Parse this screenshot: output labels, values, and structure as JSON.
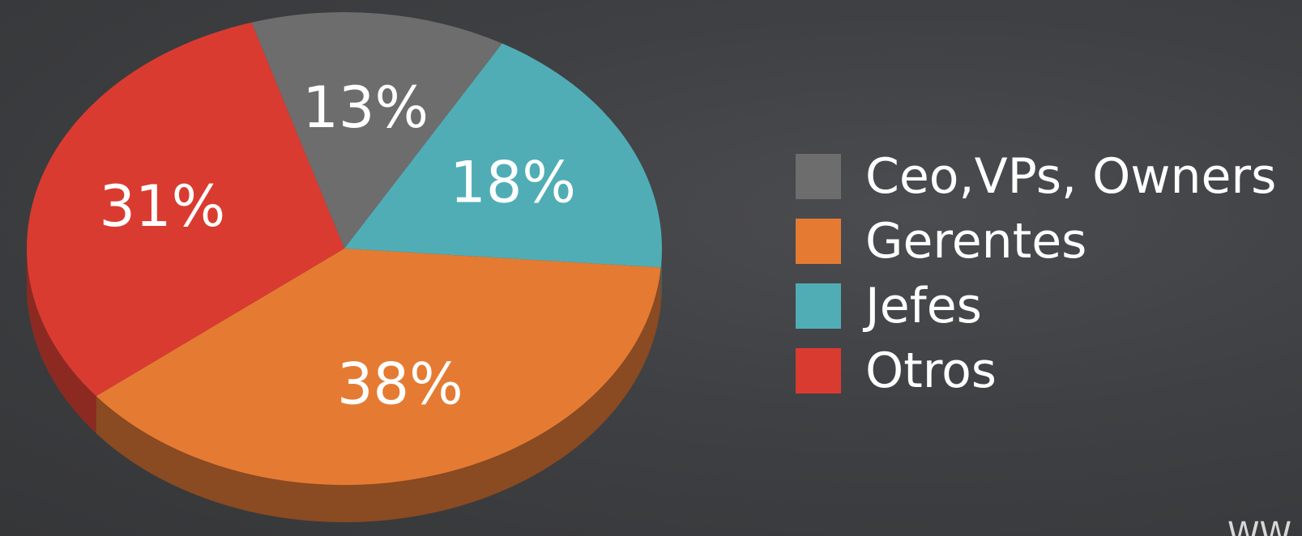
{
  "chart_data": {
    "type": "pie",
    "title": "",
    "style": "3d",
    "legend_position": "right",
    "categories": [
      "Ceo,VPs, Owners",
      "Gerentes",
      "Jefes",
      "Otros"
    ],
    "values": [
      13,
      38,
      18,
      31
    ],
    "labels": [
      "13%",
      "38%",
      "18%",
      "31%"
    ],
    "colors": [
      "#6d6d6e",
      "#e57b32",
      "#50adb5",
      "#da3b31"
    ],
    "side_colors": [
      "#4a4a4b",
      "#8a4a22",
      "#2f6a6e",
      "#8c2a22"
    ]
  },
  "legend": {
    "items": [
      {
        "label": "Ceo,VPs, Owners",
        "color": "#6d6d6e"
      },
      {
        "label": "Gerentes",
        "color": "#e57b32"
      },
      {
        "label": "Jefes",
        "color": "#50adb5"
      },
      {
        "label": "Otros",
        "color": "#da3b31"
      }
    ]
  },
  "watermark": {
    "text": "WW"
  }
}
